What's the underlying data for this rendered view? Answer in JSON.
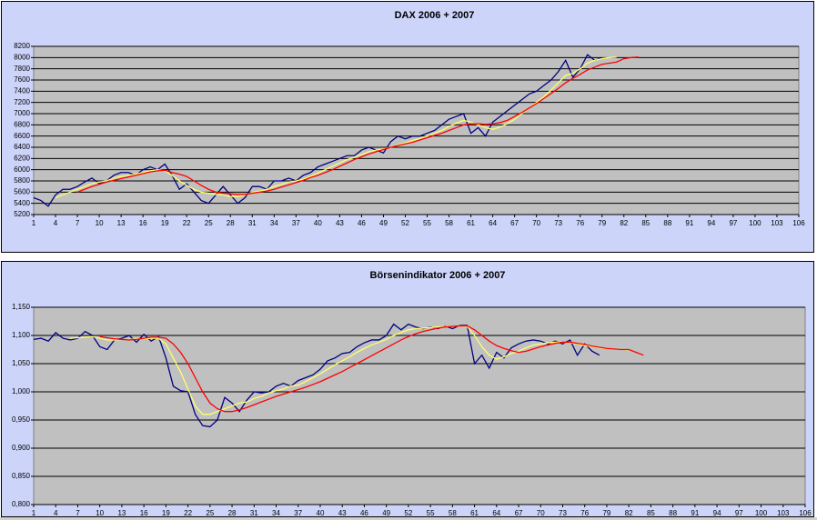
{
  "chart_data": [
    {
      "type": "line",
      "title": "DAX 2006 + 2007",
      "x": [
        1,
        2,
        3,
        4,
        5,
        6,
        7,
        8,
        9,
        10,
        11,
        12,
        13,
        14,
        15,
        16,
        17,
        18,
        19,
        20,
        21,
        22,
        23,
        24,
        25,
        26,
        27,
        28,
        29,
        30,
        31,
        32,
        33,
        34,
        35,
        36,
        37,
        38,
        39,
        40,
        41,
        42,
        43,
        44,
        45,
        46,
        47,
        48,
        49,
        50,
        51,
        52,
        53,
        54,
        55,
        56,
        57,
        58,
        59,
        60,
        61,
        62,
        63,
        64,
        65,
        66,
        67,
        68,
        69,
        70,
        71,
        72,
        73,
        74,
        75,
        76,
        77,
        78,
        79,
        80,
        81,
        82,
        83,
        84
      ],
      "xlim": [
        1,
        106
      ],
      "xticks": [
        1,
        4,
        7,
        10,
        13,
        16,
        19,
        22,
        25,
        28,
        31,
        34,
        37,
        40,
        43,
        46,
        49,
        52,
        55,
        58,
        61,
        64,
        67,
        70,
        73,
        76,
        79,
        82,
        85,
        88,
        91,
        94,
        97,
        100,
        103,
        106
      ],
      "ylim": [
        5200,
        8200
      ],
      "yticks": [
        5200,
        5400,
        5600,
        5800,
        6000,
        6200,
        6400,
        6600,
        6800,
        7000,
        7200,
        7400,
        7600,
        7800,
        8000,
        8200
      ],
      "grid": true,
      "series": [
        {
          "color": "#000080",
          "values": [
            5500,
            5450,
            5350,
            5550,
            5650,
            5650,
            5700,
            5780,
            5850,
            5750,
            5800,
            5900,
            5950,
            5950,
            5900,
            6000,
            6050,
            6000,
            6100,
            5900,
            5650,
            5750,
            5600,
            5450,
            5400,
            5550,
            5700,
            5550,
            5400,
            5500,
            5700,
            5700,
            5650,
            5800,
            5800,
            5850,
            5800,
            5900,
            5950,
            6050,
            6100,
            6150,
            6200,
            6250,
            6250,
            6350,
            6400,
            6350,
            6300,
            6500,
            6600,
            6550,
            6600,
            6600,
            6650,
            6700,
            6800,
            6900,
            6950,
            7000,
            6650,
            6750,
            6600,
            6850,
            6950,
            7050,
            7150,
            7250,
            7350,
            7400,
            7500,
            7600,
            7750,
            7950,
            7650,
            7800,
            8050,
            7950,
            8000,
            null,
            null,
            null,
            null,
            null
          ]
        },
        {
          "color": "#ffff66",
          "values": [
            null,
            null,
            null,
            5500,
            5550,
            5600,
            5650,
            5700,
            5750,
            5780,
            5800,
            5850,
            5880,
            5900,
            5920,
            5950,
            5980,
            6000,
            5980,
            5900,
            5800,
            5720,
            5650,
            5600,
            5580,
            5560,
            5550,
            5520,
            5520,
            5550,
            5600,
            5620,
            5650,
            5700,
            5740,
            5780,
            5800,
            5830,
            5880,
            5940,
            6000,
            6060,
            6120,
            6180,
            6220,
            6270,
            6320,
            6350,
            6370,
            6400,
            6440,
            6480,
            6520,
            6560,
            6600,
            6650,
            6700,
            6770,
            6830,
            6880,
            6850,
            6800,
            6750,
            6720,
            6760,
            6820,
            6900,
            7000,
            7100,
            7200,
            7300,
            7420,
            7550,
            7680,
            7720,
            7800,
            7900,
            7950,
            7980,
            8000,
            8010,
            null,
            null,
            null
          ]
        },
        {
          "color": "#ff0000",
          "values": [
            null,
            null,
            null,
            null,
            null,
            null,
            5600,
            5650,
            5700,
            5740,
            5780,
            5810,
            5840,
            5870,
            5900,
            5930,
            5960,
            5980,
            5990,
            5950,
            5920,
            5880,
            5800,
            5720,
            5650,
            5600,
            5580,
            5570,
            5560,
            5560,
            5580,
            5600,
            5620,
            5650,
            5690,
            5730,
            5770,
            5810,
            5860,
            5900,
            5950,
            6000,
            6060,
            6120,
            6180,
            6230,
            6280,
            6320,
            6360,
            6400,
            6430,
            6460,
            6490,
            6530,
            6570,
            6610,
            6650,
            6700,
            6750,
            6800,
            6820,
            6820,
            6810,
            6820,
            6840,
            6880,
            6950,
            7020,
            7100,
            7180,
            7270,
            7360,
            7450,
            7550,
            7630,
            7700,
            7780,
            7830,
            7880,
            7900,
            7920,
            7980,
            8000,
            8010
          ]
        }
      ]
    },
    {
      "type": "line",
      "title": "Börsenindikator 2006 + 2007",
      "x": [
        1,
        2,
        3,
        4,
        5,
        6,
        7,
        8,
        9,
        10,
        11,
        12,
        13,
        14,
        15,
        16,
        17,
        18,
        19,
        20,
        21,
        22,
        23,
        24,
        25,
        26,
        27,
        28,
        29,
        30,
        31,
        32,
        33,
        34,
        35,
        36,
        37,
        38,
        39,
        40,
        41,
        42,
        43,
        44,
        45,
        46,
        47,
        48,
        49,
        50,
        51,
        52,
        53,
        54,
        55,
        56,
        57,
        58,
        59,
        60,
        61,
        62,
        63,
        64,
        65,
        66,
        67,
        68,
        69,
        70,
        71,
        72,
        73,
        74,
        75,
        76,
        77,
        78,
        79,
        80,
        81,
        82,
        83,
        84
      ],
      "xlim": [
        1,
        106
      ],
      "xticks": [
        1,
        4,
        7,
        10,
        13,
        16,
        19,
        22,
        25,
        28,
        31,
        34,
        37,
        40,
        43,
        46,
        49,
        52,
        55,
        58,
        61,
        64,
        67,
        70,
        73,
        76,
        79,
        82,
        85,
        88,
        91,
        94,
        97,
        100,
        103,
        106
      ],
      "ylim": [
        0.8,
        1.15
      ],
      "yticks": [
        {
          "value": 0.8,
          "label": "0,800"
        },
        {
          "value": 0.85,
          "label": "0,850"
        },
        {
          "value": 0.9,
          "label": "0,900"
        },
        {
          "value": 0.95,
          "label": "0,950"
        },
        {
          "value": 1.0,
          "label": "1,000"
        },
        {
          "value": 1.05,
          "label": "1,050"
        },
        {
          "value": 1.1,
          "label": "1,100"
        },
        {
          "value": 1.15,
          "label": "1,150"
        }
      ],
      "grid": true,
      "series": [
        {
          "color": "#000080",
          "values": [
            1.093,
            1.095,
            1.09,
            1.105,
            1.095,
            1.092,
            1.095,
            1.107,
            1.1,
            1.08,
            1.075,
            1.092,
            1.095,
            1.1,
            1.088,
            1.102,
            1.09,
            1.098,
            1.06,
            1.01,
            1.002,
            1.0,
            0.96,
            0.94,
            0.938,
            0.95,
            0.99,
            0.98,
            0.965,
            0.985,
            1.0,
            0.998,
            1.0,
            1.01,
            1.015,
            1.01,
            1.02,
            1.025,
            1.03,
            1.04,
            1.055,
            1.06,
            1.068,
            1.07,
            1.08,
            1.087,
            1.092,
            1.092,
            1.1,
            1.12,
            1.11,
            1.12,
            1.115,
            1.112,
            1.115,
            1.112,
            1.117,
            1.112,
            1.118,
            1.118,
            1.05,
            1.065,
            1.042,
            1.07,
            1.06,
            1.078,
            1.085,
            1.09,
            1.092,
            1.09,
            1.085,
            1.09,
            1.085,
            1.092,
            1.065,
            1.085,
            1.072,
            1.065,
            null,
            null,
            null,
            null,
            null,
            null
          ]
        },
        {
          "color": "#ffff66",
          "values": [
            null,
            null,
            null,
            null,
            null,
            1.095,
            1.096,
            1.097,
            1.098,
            1.095,
            1.092,
            1.092,
            1.093,
            1.093,
            1.094,
            1.094,
            1.095,
            1.095,
            1.085,
            1.06,
            1.035,
            1.005,
            0.975,
            0.96,
            0.96,
            0.965,
            0.97,
            0.975,
            0.98,
            0.982,
            0.988,
            0.992,
            0.998,
            1.002,
            1.005,
            1.01,
            1.012,
            1.018,
            1.025,
            1.032,
            1.04,
            1.048,
            1.055,
            1.062,
            1.07,
            1.077,
            1.083,
            1.088,
            1.093,
            1.1,
            1.105,
            1.11,
            1.112,
            1.113,
            1.114,
            1.115,
            1.116,
            1.116,
            1.117,
            1.116,
            1.1,
            1.08,
            1.065,
            1.058,
            1.062,
            1.068,
            1.072,
            1.078,
            1.083,
            1.085,
            1.087,
            1.088,
            1.088,
            1.087,
            1.085,
            1.082,
            1.08,
            1.078,
            1.077,
            1.076,
            1.075,
            1.074,
            null,
            null
          ]
        },
        {
          "color": "#ff0000",
          "values": [
            null,
            null,
            null,
            null,
            null,
            null,
            null,
            null,
            null,
            1.098,
            1.096,
            1.094,
            1.093,
            1.092,
            1.093,
            1.095,
            1.097,
            1.097,
            1.095,
            1.085,
            1.07,
            1.05,
            1.025,
            1.0,
            0.98,
            0.97,
            0.965,
            0.965,
            0.968,
            0.972,
            0.977,
            0.982,
            0.987,
            0.992,
            0.996,
            1.0,
            1.004,
            1.008,
            1.013,
            1.018,
            1.024,
            1.03,
            1.036,
            1.043,
            1.05,
            1.057,
            1.064,
            1.071,
            1.078,
            1.085,
            1.092,
            1.098,
            1.103,
            1.107,
            1.11,
            1.113,
            1.115,
            1.116,
            1.117,
            1.117,
            1.11,
            1.1,
            1.09,
            1.082,
            1.077,
            1.073,
            1.07,
            1.072,
            1.076,
            1.08,
            1.083,
            1.086,
            1.088,
            1.088,
            1.086,
            1.084,
            1.081,
            1.079,
            1.077,
            1.076,
            1.075,
            1.075,
            1.07,
            1.065
          ]
        }
      ]
    }
  ]
}
